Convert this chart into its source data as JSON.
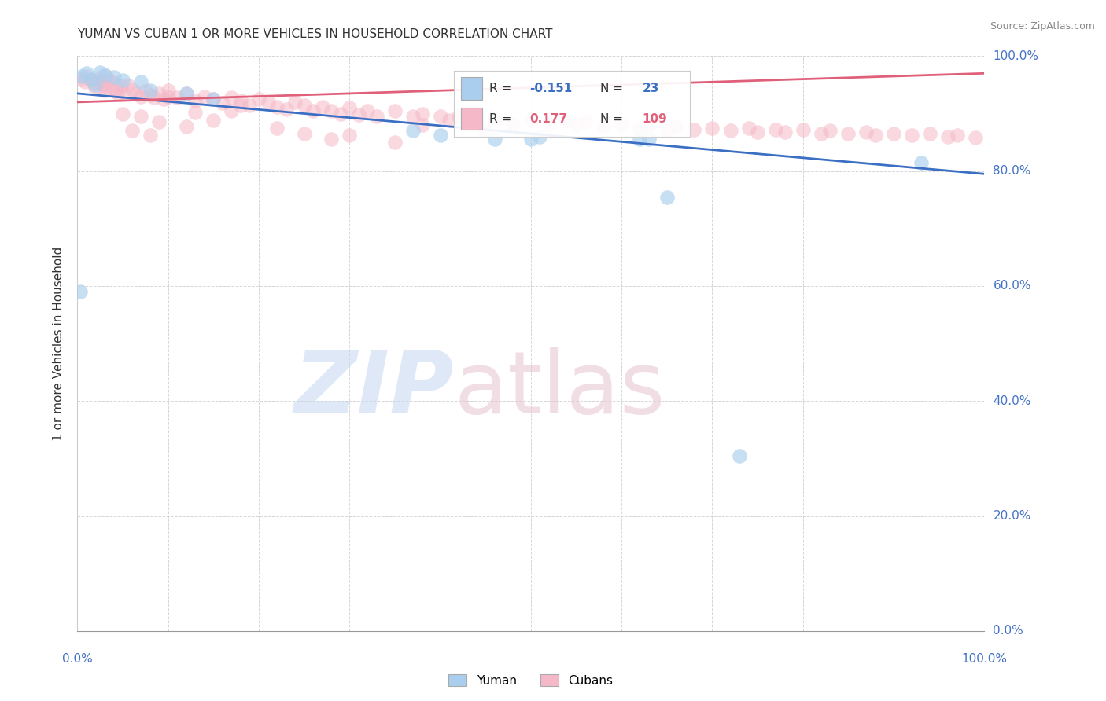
{
  "title": "YUMAN VS CUBAN 1 OR MORE VEHICLES IN HOUSEHOLD CORRELATION CHART",
  "source_text": "Source: ZipAtlas.com",
  "ylabel": "1 or more Vehicles in Household",
  "blue_color": "#aacfee",
  "pink_color": "#f5b8c8",
  "blue_line_color": "#3a6fc4",
  "pink_line_color": "#e0607a",
  "blue_N": 23,
  "pink_N": 109,
  "blue_R": -0.151,
  "pink_R": 0.177,
  "blue_line_x0": 0.0,
  "blue_line_y0": 0.935,
  "blue_line_x1": 1.0,
  "blue_line_y1": 0.795,
  "pink_line_x0": 0.0,
  "pink_line_y0": 0.92,
  "pink_line_x1": 1.0,
  "pink_line_y1": 0.97,
  "ytick_positions": [
    0.0,
    0.2,
    0.4,
    0.6,
    0.8,
    1.0
  ],
  "ytick_labels": [
    "0.0%",
    "20.0%",
    "40.0%",
    "60.0%",
    "80.0%",
    "100.0%"
  ],
  "xtick_positions": [
    0.0,
    0.1,
    0.2,
    0.3,
    0.4,
    0.5,
    0.6,
    0.7,
    0.8,
    0.9,
    1.0
  ],
  "xtick_labels_bottom": [
    "0.0%",
    "",
    "",
    "",
    "",
    "",
    "",
    "",
    "",
    "",
    "100.0%"
  ],
  "watermark_zip_color": "#d0dff0",
  "watermark_atlas_color": "#ddc8d4",
  "grid_color": "#cccccc",
  "blue_x": [
    0.005,
    0.01,
    0.015,
    0.02,
    0.025,
    0.03,
    0.04,
    0.05,
    0.07,
    0.08,
    0.12,
    0.15,
    0.37,
    0.4,
    0.46,
    0.5,
    0.51,
    0.62,
    0.63,
    0.93,
    0.003,
    0.65,
    0.73
  ],
  "blue_y": [
    0.965,
    0.97,
    0.96,
    0.95,
    0.972,
    0.968,
    0.963,
    0.958,
    0.955,
    0.94,
    0.935,
    0.925,
    0.87,
    0.862,
    0.855,
    0.855,
    0.86,
    0.855,
    0.855,
    0.815,
    0.59,
    0.755,
    0.305
  ],
  "pink_x": [
    0.005,
    0.008,
    0.01,
    0.015,
    0.018,
    0.02,
    0.022,
    0.025,
    0.028,
    0.03,
    0.032,
    0.035,
    0.038,
    0.04,
    0.042,
    0.045,
    0.048,
    0.05,
    0.055,
    0.06,
    0.065,
    0.07,
    0.075,
    0.08,
    0.085,
    0.09,
    0.095,
    0.1,
    0.11,
    0.12,
    0.13,
    0.14,
    0.15,
    0.16,
    0.17,
    0.18,
    0.19,
    0.2,
    0.21,
    0.22,
    0.23,
    0.24,
    0.25,
    0.26,
    0.27,
    0.28,
    0.29,
    0.3,
    0.31,
    0.32,
    0.33,
    0.35,
    0.37,
    0.38,
    0.4,
    0.41,
    0.42,
    0.44,
    0.46,
    0.48,
    0.5,
    0.52,
    0.54,
    0.55,
    0.56,
    0.58,
    0.6,
    0.62,
    0.63,
    0.65,
    0.66,
    0.68,
    0.7,
    0.72,
    0.74,
    0.75,
    0.77,
    0.78,
    0.8,
    0.82,
    0.83,
    0.85,
    0.87,
    0.88,
    0.9,
    0.92,
    0.94,
    0.96,
    0.97,
    0.99,
    0.12,
    0.06,
    0.09,
    0.15,
    0.03,
    0.07,
    0.13,
    0.18,
    0.08,
    0.05,
    0.1,
    0.22,
    0.3,
    0.38,
    0.28,
    0.45,
    0.35,
    0.17,
    0.25
  ],
  "pink_y": [
    0.96,
    0.955,
    0.965,
    0.958,
    0.952,
    0.945,
    0.96,
    0.955,
    0.95,
    0.94,
    0.965,
    0.958,
    0.945,
    0.952,
    0.94,
    0.935,
    0.948,
    0.938,
    0.95,
    0.942,
    0.935,
    0.93,
    0.94,
    0.932,
    0.928,
    0.935,
    0.925,
    0.93,
    0.928,
    0.935,
    0.922,
    0.93,
    0.925,
    0.918,
    0.928,
    0.922,
    0.915,
    0.925,
    0.92,
    0.912,
    0.908,
    0.92,
    0.915,
    0.905,
    0.912,
    0.905,
    0.9,
    0.91,
    0.898,
    0.905,
    0.895,
    0.905,
    0.895,
    0.9,
    0.895,
    0.888,
    0.895,
    0.885,
    0.892,
    0.882,
    0.888,
    0.882,
    0.888,
    0.88,
    0.885,
    0.878,
    0.882,
    0.875,
    0.88,
    0.87,
    0.878,
    0.872,
    0.875,
    0.87,
    0.875,
    0.868,
    0.872,
    0.868,
    0.872,
    0.865,
    0.87,
    0.865,
    0.868,
    0.862,
    0.865,
    0.862,
    0.865,
    0.86,
    0.862,
    0.858,
    0.878,
    0.87,
    0.885,
    0.888,
    0.948,
    0.895,
    0.902,
    0.915,
    0.862,
    0.9,
    0.94,
    0.875,
    0.862,
    0.88,
    0.855,
    0.87,
    0.85,
    0.905,
    0.865
  ]
}
